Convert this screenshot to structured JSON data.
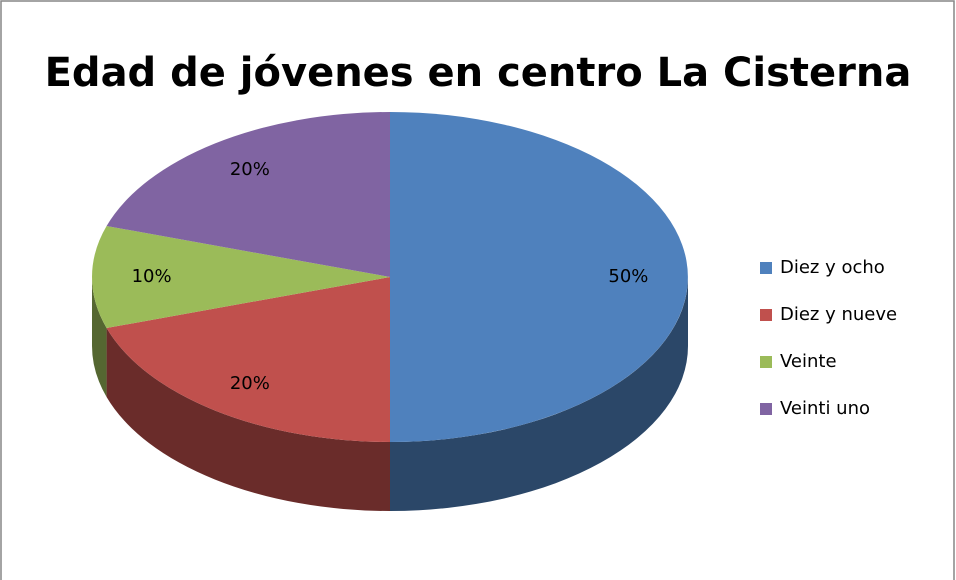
{
  "chart_data": {
    "type": "pie",
    "title": "Edad de jóvenes en centro La Cisterna",
    "categories": [
      "Diez y ocho",
      "Diez y nueve",
      "Veinte",
      "Veinti uno"
    ],
    "values": [
      50,
      20,
      10,
      20
    ],
    "value_labels": [
      "50%",
      "20%",
      "10%",
      "20%"
    ],
    "colors": [
      "#4f81bd",
      "#c0504d",
      "#9bbb59",
      "#8064a2"
    ],
    "legend": "right"
  }
}
